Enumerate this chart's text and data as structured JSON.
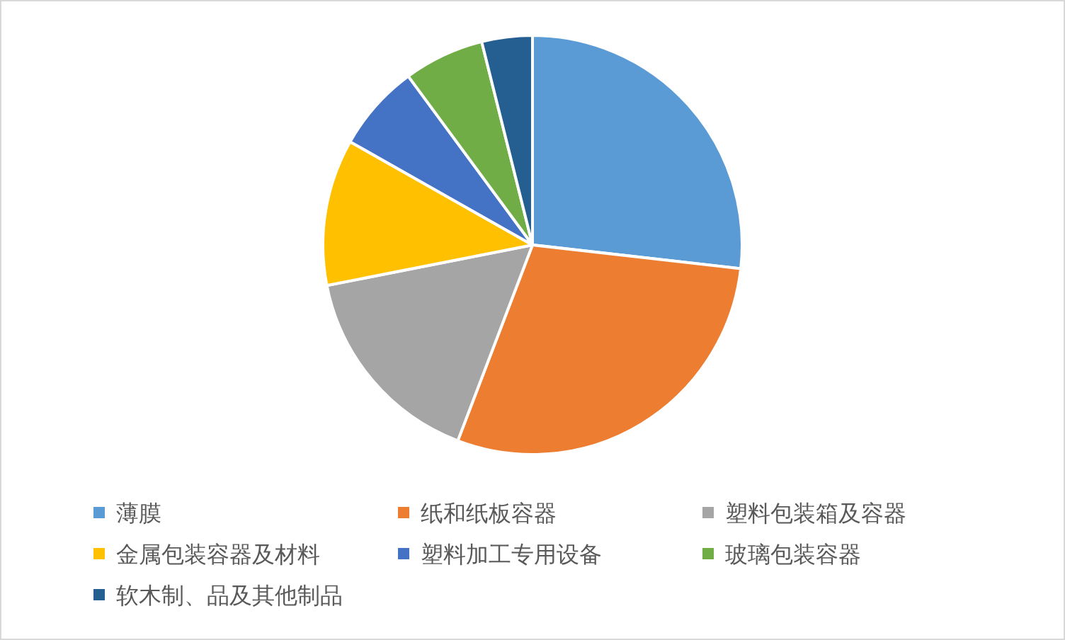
{
  "chart_data": {
    "type": "pie",
    "legend": "bottom",
    "categories": [
      "薄膜",
      "纸和纸板容器",
      "塑料包装箱及容器",
      "金属包装容器及材料",
      "塑料加工专用设备",
      "玻璃包装容器",
      "软木制、品及其他制品"
    ],
    "values": [
      26.8,
      29.0,
      16.1,
      11.3,
      6.7,
      6.2,
      3.9
    ],
    "colors": [
      "#5b9bd5",
      "#ed7d31",
      "#a5a5a5",
      "#ffc000",
      "#4472c4",
      "#70ad47",
      "#255e91"
    ]
  }
}
